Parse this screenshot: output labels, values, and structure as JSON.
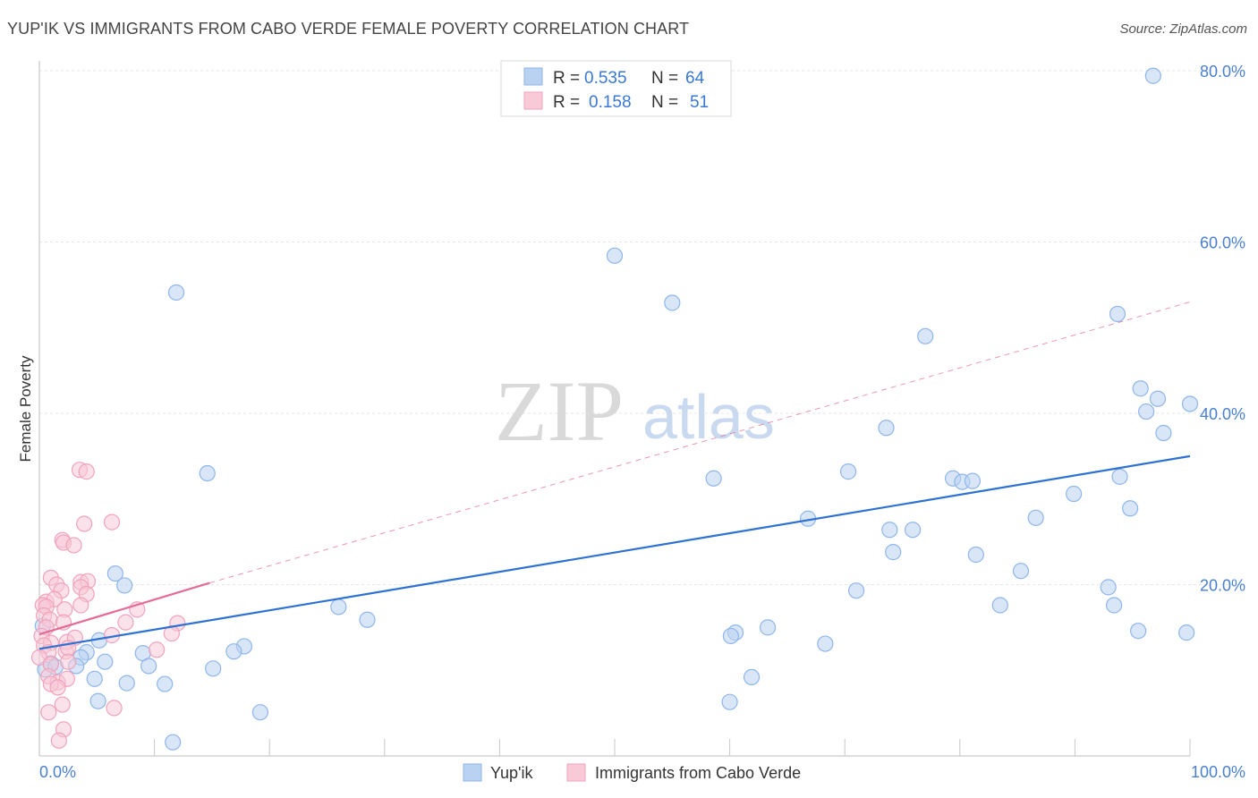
{
  "chart_data": {
    "type": "scatter",
    "title": "YUP'IK VS IMMIGRANTS FROM CABO VERDE FEMALE POVERTY CORRELATION CHART",
    "source": "Source: ZipAtlas.com",
    "xlabel": "",
    "ylabel": "Female Poverty",
    "xlim": [
      0,
      100
    ],
    "ylim": [
      0,
      80
    ],
    "x_tick_labels": [
      "0.0%",
      "100.0%"
    ],
    "y_ticks": [
      20,
      40,
      60,
      80
    ],
    "y_tick_labels": [
      "20.0%",
      "40.0%",
      "60.0%",
      "80.0%"
    ],
    "watermark": {
      "zip": "ZIP",
      "atlas": "atlas"
    },
    "legend": {
      "r_label": "R =",
      "n_label": "N =",
      "entries": [
        {
          "r": "0.535",
          "n": "64"
        },
        {
          "r": "0.158",
          "n": "51"
        }
      ]
    },
    "series": [
      {
        "name": "Yup'ik",
        "color": "#8fb6ea",
        "fill": "#b9d2f2",
        "line_color": "#2d72d2",
        "trend": {
          "x": [
            0,
            100
          ],
          "y": [
            12.5,
            35.0
          ],
          "dashed": false
        },
        "points": [
          [
            96.8,
            79.4
          ],
          [
            50.0,
            58.4
          ],
          [
            11.9,
            54.1
          ],
          [
            55.0,
            52.9
          ],
          [
            93.7,
            51.6
          ],
          [
            77.0,
            49.0
          ],
          [
            95.7,
            42.9
          ],
          [
            97.2,
            41.7
          ],
          [
            100.0,
            41.1
          ],
          [
            96.2,
            40.2
          ],
          [
            97.7,
            37.7
          ],
          [
            73.6,
            38.3
          ],
          [
            14.6,
            33.0
          ],
          [
            58.6,
            32.4
          ],
          [
            70.3,
            33.2
          ],
          [
            79.4,
            32.4
          ],
          [
            80.2,
            32.0
          ],
          [
            81.1,
            32.1
          ],
          [
            93.9,
            32.6
          ],
          [
            89.9,
            30.6
          ],
          [
            94.8,
            28.9
          ],
          [
            66.8,
            27.7
          ],
          [
            86.6,
            27.8
          ],
          [
            73.9,
            26.4
          ],
          [
            75.9,
            26.4
          ],
          [
            74.2,
            23.8
          ],
          [
            81.4,
            23.5
          ],
          [
            85.3,
            21.6
          ],
          [
            6.6,
            21.3
          ],
          [
            7.4,
            19.9
          ],
          [
            92.9,
            19.7
          ],
          [
            71.0,
            19.3
          ],
          [
            93.4,
            17.6
          ],
          [
            83.5,
            17.6
          ],
          [
            26.0,
            17.4
          ],
          [
            28.5,
            15.9
          ],
          [
            63.3,
            15.0
          ],
          [
            60.5,
            14.4
          ],
          [
            60.1,
            14.0
          ],
          [
            95.5,
            14.6
          ],
          [
            99.7,
            14.4
          ],
          [
            68.3,
            13.1
          ],
          [
            5.2,
            13.5
          ],
          [
            17.8,
            12.8
          ],
          [
            16.9,
            12.2
          ],
          [
            4.1,
            12.1
          ],
          [
            3.6,
            11.5
          ],
          [
            9.0,
            12.0
          ],
          [
            5.7,
            11.0
          ],
          [
            1.0,
            10.8
          ],
          [
            0.5,
            10.1
          ],
          [
            1.4,
            10.4
          ],
          [
            3.2,
            10.5
          ],
          [
            9.5,
            10.5
          ],
          [
            15.1,
            10.2
          ],
          [
            4.8,
            9.0
          ],
          [
            7.6,
            8.5
          ],
          [
            61.9,
            9.2
          ],
          [
            10.9,
            8.4
          ],
          [
            5.1,
            6.4
          ],
          [
            60.0,
            6.3
          ],
          [
            19.2,
            5.1
          ],
          [
            11.6,
            1.6
          ],
          [
            0.3,
            15.2
          ]
        ]
      },
      {
        "name": "Immigrants from Cabo Verde",
        "color": "#f0a3bb",
        "fill": "#f8c9d7",
        "line_color": "#e56b93",
        "trend": {
          "x": [
            0,
            14.8
          ],
          "y": [
            14.2,
            20.2
          ],
          "dashed": false,
          "extension": {
            "x": [
              14.8,
              100
            ],
            "y": [
              20.2,
              53.0
            ],
            "dashed": true
          }
        },
        "points": [
          [
            3.5,
            33.4
          ],
          [
            4.1,
            33.2
          ],
          [
            3.9,
            27.1
          ],
          [
            6.3,
            27.3
          ],
          [
            2.0,
            25.2
          ],
          [
            2.1,
            24.9
          ],
          [
            3.0,
            24.6
          ],
          [
            1.0,
            20.8
          ],
          [
            3.6,
            20.3
          ],
          [
            4.2,
            20.4
          ],
          [
            1.5,
            20.0
          ],
          [
            3.6,
            19.7
          ],
          [
            1.9,
            19.3
          ],
          [
            4.1,
            18.9
          ],
          [
            0.6,
            18.0
          ],
          [
            1.3,
            18.3
          ],
          [
            0.3,
            17.6
          ],
          [
            0.6,
            17.4
          ],
          [
            3.6,
            17.6
          ],
          [
            2.2,
            17.1
          ],
          [
            8.5,
            17.1
          ],
          [
            0.4,
            16.4
          ],
          [
            0.9,
            15.9
          ],
          [
            2.1,
            15.6
          ],
          [
            7.5,
            15.6
          ],
          [
            12.0,
            15.5
          ],
          [
            0.6,
            15.0
          ],
          [
            11.5,
            14.3
          ],
          [
            6.3,
            14.1
          ],
          [
            0.2,
            14.0
          ],
          [
            1.0,
            13.2
          ],
          [
            2.4,
            13.3
          ],
          [
            3.1,
            13.8
          ],
          [
            0.4,
            12.9
          ],
          [
            0.8,
            12.1
          ],
          [
            2.3,
            12.2
          ],
          [
            2.5,
            12.6
          ],
          [
            10.2,
            12.4
          ],
          [
            0.0,
            11.5
          ],
          [
            1.0,
            10.7
          ],
          [
            2.5,
            11.0
          ],
          [
            0.8,
            9.3
          ],
          [
            1.6,
            8.6
          ],
          [
            2.4,
            9.0
          ],
          [
            1.0,
            8.4
          ],
          [
            1.6,
            8.0
          ],
          [
            2.0,
            6.0
          ],
          [
            0.8,
            5.1
          ],
          [
            6.5,
            5.6
          ],
          [
            2.1,
            3.1
          ],
          [
            1.7,
            1.8
          ]
        ]
      }
    ]
  }
}
